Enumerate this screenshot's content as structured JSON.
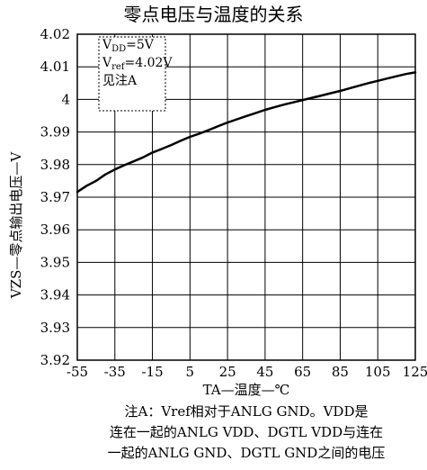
{
  "chart_data": {
    "type": "line",
    "title": "零点电压与温度的关系",
    "xlabel": "TA—温度—℃",
    "ylabel": "VZS—零点输出电压—V",
    "xlim": [
      -55,
      125
    ],
    "ylim": [
      3.92,
      4.02
    ],
    "xticks": [
      -55,
      -35,
      -15,
      5,
      25,
      45,
      65,
      85,
      105,
      125
    ],
    "xtick_labels": [
      "-55",
      "-35",
      "-15",
      "5",
      "25",
      "45",
      "65",
      "85",
      "105",
      "125"
    ],
    "yticks": [
      3.92,
      3.93,
      3.94,
      3.95,
      3.96,
      3.97,
      3.98,
      3.99,
      4.0,
      4.01,
      4.02
    ],
    "ytick_labels": [
      "3.92",
      "3.93",
      "3.94",
      "3.95",
      "3.96",
      "3.97",
      "3.98",
      "3.99",
      "4",
      "4.01",
      "4.02"
    ],
    "grid": true,
    "legend": {
      "position": "top-left",
      "lines": [
        "VDD=5V",
        "Vref=4.02V",
        "见注A"
      ]
    },
    "series": [
      {
        "color": "#000000",
        "x": [
          -55,
          -50,
          -45,
          -40,
          -35,
          -30,
          -25,
          -20,
          -15,
          -10,
          -5,
          0,
          5,
          10,
          15,
          20,
          25,
          30,
          35,
          40,
          45,
          50,
          55,
          60,
          65,
          70,
          75,
          80,
          85,
          90,
          95,
          100,
          105,
          110,
          115,
          120,
          125
        ],
        "y": [
          3.9716,
          3.9735,
          3.975,
          3.977,
          3.9785,
          3.9798,
          3.981,
          3.9822,
          3.9837,
          3.9848,
          3.986,
          3.9873,
          3.9885,
          3.9895,
          3.9906,
          3.9918,
          3.9929,
          3.9939,
          3.9949,
          3.9958,
          3.9968,
          3.9976,
          3.9984,
          3.9991,
          3.9998,
          4.0005,
          4.0012,
          4.0019,
          4.0026,
          4.0034,
          4.0042,
          4.005,
          4.0057,
          4.0064,
          4.0071,
          4.0078,
          4.0083
        ]
      }
    ],
    "note": [
      "注A：Vref相对于ANLG GND。VDD是",
      "连在一起的ANLG VDD、DGTL VDD与连在",
      "一起的ANLG GND、DGTL GND之间的电压"
    ]
  }
}
